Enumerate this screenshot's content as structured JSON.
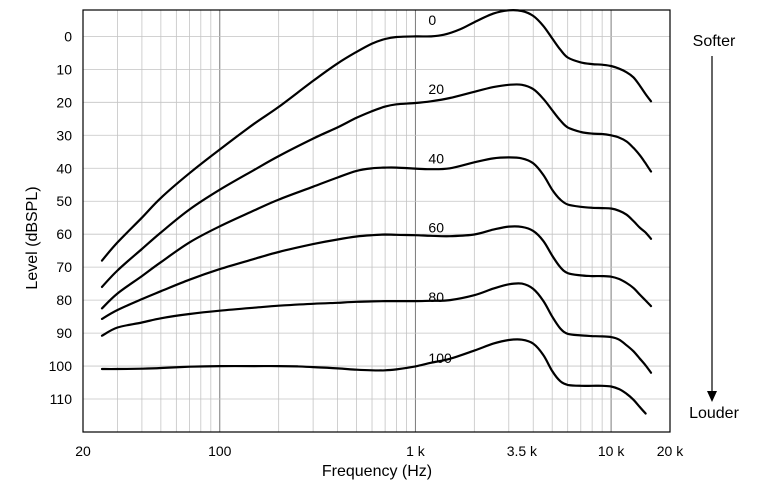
{
  "chart_data": {
    "type": "line",
    "xlabel": "Frequency (Hz)",
    "ylabel": "Level (dBSPL)",
    "x_scale": "log",
    "xlim": [
      20,
      20000
    ],
    "ylim": [
      -8,
      120
    ],
    "y_inverted": true,
    "grid": true,
    "x_ticks": [
      {
        "value": 20,
        "label": "20"
      },
      {
        "value": 100,
        "label": "100"
      },
      {
        "value": 1000,
        "label": "1 k"
      },
      {
        "value": 3500,
        "label": "3.5 k",
        "color": "#8a8a8a"
      },
      {
        "value": 10000,
        "label": "10 k"
      },
      {
        "value": 20000,
        "label": "20 k"
      }
    ],
    "y_ticks": [
      0,
      10,
      20,
      30,
      40,
      50,
      60,
      70,
      80,
      90,
      100,
      110
    ],
    "series": [
      {
        "name": "0",
        "label_at": [
          1000,
          -5
        ],
        "points": [
          [
            25,
            68
          ],
          [
            30,
            62.5
          ],
          [
            40,
            55
          ],
          [
            50,
            49
          ],
          [
            70,
            41.5
          ],
          [
            100,
            34.3
          ],
          [
            150,
            26.5
          ],
          [
            200,
            21.4
          ],
          [
            300,
            13.5
          ],
          [
            400,
            8.2
          ],
          [
            500,
            4.7
          ],
          [
            600,
            2.2
          ],
          [
            700,
            0.8
          ],
          [
            800,
            0.2
          ],
          [
            1000,
            0
          ],
          [
            1200,
            0
          ],
          [
            1400,
            -0.5
          ],
          [
            1700,
            -2.2
          ],
          [
            2000,
            -4.3
          ],
          [
            2500,
            -6.9
          ],
          [
            3000,
            -7.9
          ],
          [
            3500,
            -7.7
          ],
          [
            4000,
            -6.2
          ],
          [
            4500,
            -3.2
          ],
          [
            5000,
            0.6
          ],
          [
            5500,
            4
          ],
          [
            6000,
            6.4
          ],
          [
            7000,
            7.9
          ],
          [
            8000,
            8.4
          ],
          [
            9000,
            8.6
          ],
          [
            10000,
            9
          ],
          [
            11000,
            9.8
          ],
          [
            12000,
            10.9
          ],
          [
            13000,
            12.4
          ],
          [
            14000,
            14.9
          ],
          [
            15000,
            17.5
          ],
          [
            16000,
            19.7
          ]
        ]
      },
      {
        "name": "20",
        "label_at": [
          1000,
          16
        ],
        "points": [
          [
            25,
            76
          ],
          [
            30,
            71
          ],
          [
            40,
            64.5
          ],
          [
            50,
            59.5
          ],
          [
            70,
            52.5
          ],
          [
            100,
            46.5
          ],
          [
            150,
            40.5
          ],
          [
            200,
            36.3
          ],
          [
            300,
            31
          ],
          [
            400,
            27.6
          ],
          [
            500,
            24.7
          ],
          [
            600,
            22.7
          ],
          [
            700,
            21.3
          ],
          [
            800,
            20.6
          ],
          [
            1000,
            20.2
          ],
          [
            1200,
            19.7
          ],
          [
            1500,
            18.7
          ],
          [
            2000,
            16.8
          ],
          [
            2500,
            15.4
          ],
          [
            3000,
            14.7
          ],
          [
            3500,
            14.7
          ],
          [
            4000,
            16
          ],
          [
            4500,
            18.9
          ],
          [
            5000,
            22.4
          ],
          [
            5500,
            25.5
          ],
          [
            6000,
            27.6
          ],
          [
            7000,
            29
          ],
          [
            8000,
            29.5
          ],
          [
            9000,
            29.6
          ],
          [
            10000,
            30
          ],
          [
            11000,
            30.7
          ],
          [
            12000,
            31.9
          ],
          [
            13000,
            33.8
          ],
          [
            14000,
            36
          ],
          [
            15000,
            38.5
          ],
          [
            16000,
            41
          ]
        ]
      },
      {
        "name": "40",
        "label_at": [
          1000,
          37
        ],
        "points": [
          [
            25,
            82.5
          ],
          [
            30,
            78
          ],
          [
            40,
            72.7
          ],
          [
            50,
            68.5
          ],
          [
            70,
            62.5
          ],
          [
            100,
            57.6
          ],
          [
            150,
            52.8
          ],
          [
            200,
            49.5
          ],
          [
            300,
            45.6
          ],
          [
            400,
            42.8
          ],
          [
            500,
            40.8
          ],
          [
            600,
            40
          ],
          [
            700,
            39.8
          ],
          [
            800,
            39.8
          ],
          [
            1000,
            40.1
          ],
          [
            1200,
            40.3
          ],
          [
            1500,
            40
          ],
          [
            2000,
            38.2
          ],
          [
            2500,
            37
          ],
          [
            3000,
            36.7
          ],
          [
            3500,
            37
          ],
          [
            4000,
            38.5
          ],
          [
            4500,
            42
          ],
          [
            5000,
            46.5
          ],
          [
            5500,
            49.5
          ],
          [
            6000,
            51
          ],
          [
            7000,
            51.7
          ],
          [
            8000,
            52
          ],
          [
            9000,
            52.1
          ],
          [
            10000,
            52.2
          ],
          [
            11000,
            52.9
          ],
          [
            12000,
            54.1
          ],
          [
            13000,
            56
          ],
          [
            14000,
            58
          ],
          [
            15000,
            59.5
          ],
          [
            16000,
            61.4
          ]
        ]
      },
      {
        "name": "60",
        "label_at": [
          1000,
          58
        ],
        "points": [
          [
            25,
            85.7
          ],
          [
            30,
            83
          ],
          [
            40,
            79.7
          ],
          [
            50,
            77.3
          ],
          [
            70,
            73.8
          ],
          [
            100,
            70.6
          ],
          [
            150,
            67.5
          ],
          [
            200,
            65.4
          ],
          [
            300,
            63
          ],
          [
            400,
            61.6
          ],
          [
            500,
            60.7
          ],
          [
            600,
            60.3
          ],
          [
            700,
            60.1
          ],
          [
            800,
            60.2
          ],
          [
            1000,
            60.3
          ],
          [
            1200,
            60.5
          ],
          [
            1500,
            60.6
          ],
          [
            2000,
            60.1
          ],
          [
            2500,
            58.6
          ],
          [
            3000,
            57.7
          ],
          [
            3500,
            57.8
          ],
          [
            4000,
            59
          ],
          [
            4500,
            62
          ],
          [
            5000,
            66.5
          ],
          [
            5500,
            70
          ],
          [
            6000,
            71.8
          ],
          [
            7000,
            72.5
          ],
          [
            8000,
            72.7
          ],
          [
            9000,
            72.7
          ],
          [
            10000,
            72.9
          ],
          [
            11000,
            73.6
          ],
          [
            12000,
            74.8
          ],
          [
            13000,
            76.3
          ],
          [
            14000,
            78.3
          ],
          [
            15000,
            80.1
          ],
          [
            16000,
            81.8
          ]
        ]
      },
      {
        "name": "80",
        "label_at": [
          1000,
          79
        ],
        "points": [
          [
            25,
            90.8
          ],
          [
            30,
            88.3
          ],
          [
            40,
            86.8
          ],
          [
            50,
            85.5
          ],
          [
            70,
            84.2
          ],
          [
            100,
            83.2
          ],
          [
            150,
            82.3
          ],
          [
            200,
            81.7
          ],
          [
            300,
            81.1
          ],
          [
            400,
            80.8
          ],
          [
            500,
            80.5
          ],
          [
            600,
            80.4
          ],
          [
            700,
            80.3
          ],
          [
            800,
            80.3
          ],
          [
            1000,
            80.3
          ],
          [
            1200,
            80.2
          ],
          [
            1500,
            80
          ],
          [
            2000,
            78.5
          ],
          [
            2500,
            76.5
          ],
          [
            3000,
            75.2
          ],
          [
            3500,
            75
          ],
          [
            4000,
            76.6
          ],
          [
            4500,
            80.2
          ],
          [
            5000,
            85
          ],
          [
            5500,
            88.6
          ],
          [
            6000,
            90.2
          ],
          [
            7000,
            90.7
          ],
          [
            8000,
            90.9
          ],
          [
            9000,
            91
          ],
          [
            10000,
            91.2
          ],
          [
            11000,
            92
          ],
          [
            12000,
            93.7
          ],
          [
            13000,
            95.5
          ],
          [
            14000,
            97.7
          ],
          [
            15000,
            99.8
          ],
          [
            16000,
            102
          ]
        ]
      },
      {
        "name": "100",
        "label_at": [
          1000,
          97.5
        ],
        "points": [
          [
            25,
            100.9
          ],
          [
            30,
            100.9
          ],
          [
            40,
            100.8
          ],
          [
            50,
            100.6
          ],
          [
            70,
            100.2
          ],
          [
            100,
            100
          ],
          [
            150,
            100
          ],
          [
            200,
            100
          ],
          [
            250,
            100.1
          ],
          [
            300,
            100.3
          ],
          [
            400,
            100.7
          ],
          [
            500,
            101.1
          ],
          [
            600,
            101.3
          ],
          [
            700,
            101.3
          ],
          [
            800,
            101
          ],
          [
            1000,
            100.1
          ],
          [
            1200,
            99
          ],
          [
            1500,
            97.8
          ],
          [
            2000,
            95.3
          ],
          [
            2500,
            93.2
          ],
          [
            3000,
            92.1
          ],
          [
            3500,
            92
          ],
          [
            4000,
            93.2
          ],
          [
            4500,
            96.6
          ],
          [
            5000,
            101.5
          ],
          [
            5500,
            104.6
          ],
          [
            6000,
            105.7
          ],
          [
            7000,
            106
          ],
          [
            8000,
            106
          ],
          [
            9000,
            106
          ],
          [
            10000,
            106.2
          ],
          [
            11000,
            107
          ],
          [
            12000,
            108.4
          ],
          [
            13000,
            110.2
          ],
          [
            14000,
            112.4
          ],
          [
            15000,
            114.4
          ]
        ]
      }
    ]
  },
  "annotations": {
    "softer": "Softer",
    "louder": "Louder"
  }
}
